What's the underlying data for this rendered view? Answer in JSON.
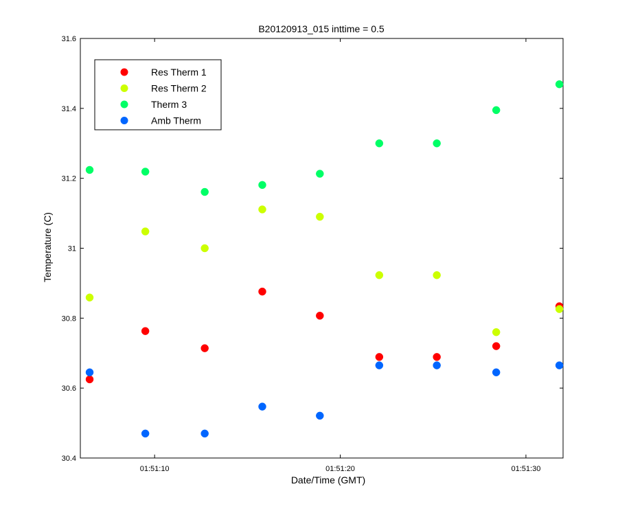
{
  "chart_data": {
    "type": "scatter",
    "title": "B20120913_015 inttime = 0.5",
    "xlabel": "Date/Time (GMT)",
    "ylabel": "Temperature (C)",
    "x_ticks": [
      "01:51:10",
      "01:51:20",
      "01:51:30"
    ],
    "x_tick_seconds": [
      10,
      20,
      30
    ],
    "xlim_seconds": [
      6,
      32
    ],
    "ylim": [
      30.4,
      31.6
    ],
    "y_ticks": [
      "30.4",
      "30.6",
      "30.8",
      "31",
      "31.2",
      "31.4",
      "31.6"
    ],
    "y_tick_values": [
      30.4,
      30.6,
      30.8,
      31.0,
      31.2,
      31.4,
      31.6
    ],
    "legend_position": "top-left",
    "x_seconds": [
      6.5,
      9.5,
      12.7,
      15.8,
      18.9,
      22.1,
      25.2,
      28.4,
      31.8
    ],
    "series": [
      {
        "name": "Res Therm 1",
        "color": "#ff0000",
        "values": [
          30.625,
          30.763,
          30.714,
          30.876,
          30.807,
          30.689,
          30.689,
          30.72,
          30.834
        ]
      },
      {
        "name": "Res Therm 2",
        "color": "#ccff00",
        "values": [
          30.859,
          31.048,
          31.0,
          31.111,
          31.09,
          30.923,
          30.923,
          30.76,
          30.826
        ]
      },
      {
        "name": "Therm 3",
        "color": "#00ff66",
        "values": [
          31.224,
          31.219,
          31.161,
          31.181,
          31.213,
          31.3,
          31.3,
          31.395,
          31.469
        ]
      },
      {
        "name": "Amb Therm",
        "color": "#0066ff",
        "values": [
          30.645,
          30.47,
          30.47,
          30.547,
          30.521,
          30.665,
          30.665,
          30.645,
          30.665
        ]
      }
    ]
  }
}
